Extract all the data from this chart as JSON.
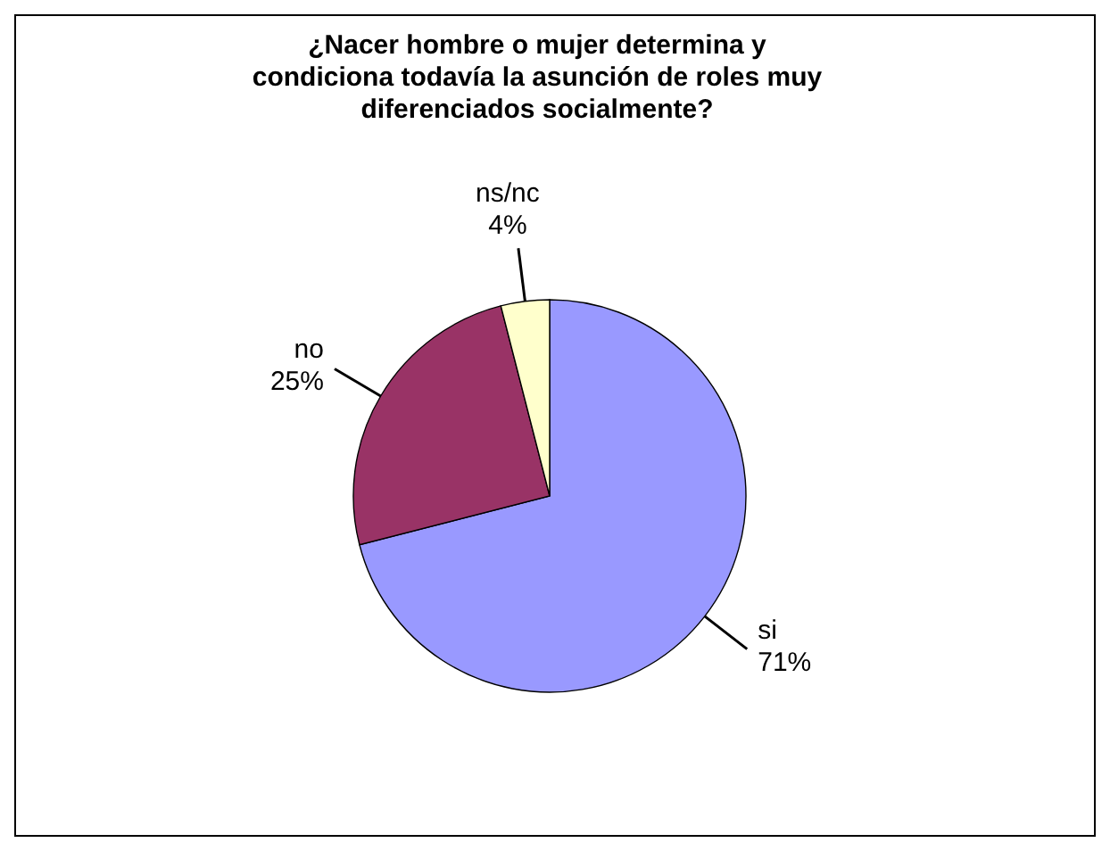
{
  "chart_data": {
    "type": "pie",
    "title": "¿Nacer hombre o mujer determina y condiciona todavía la asunción de roles muy diferenciados socialmente?",
    "categories": [
      "si",
      "no",
      "ns/nc"
    ],
    "values": [
      71,
      25,
      4
    ],
    "value_labels": [
      "71%",
      "25%",
      "4%"
    ],
    "colors": [
      "#9999ff",
      "#993366",
      "#ffffcc"
    ],
    "legend": false
  }
}
